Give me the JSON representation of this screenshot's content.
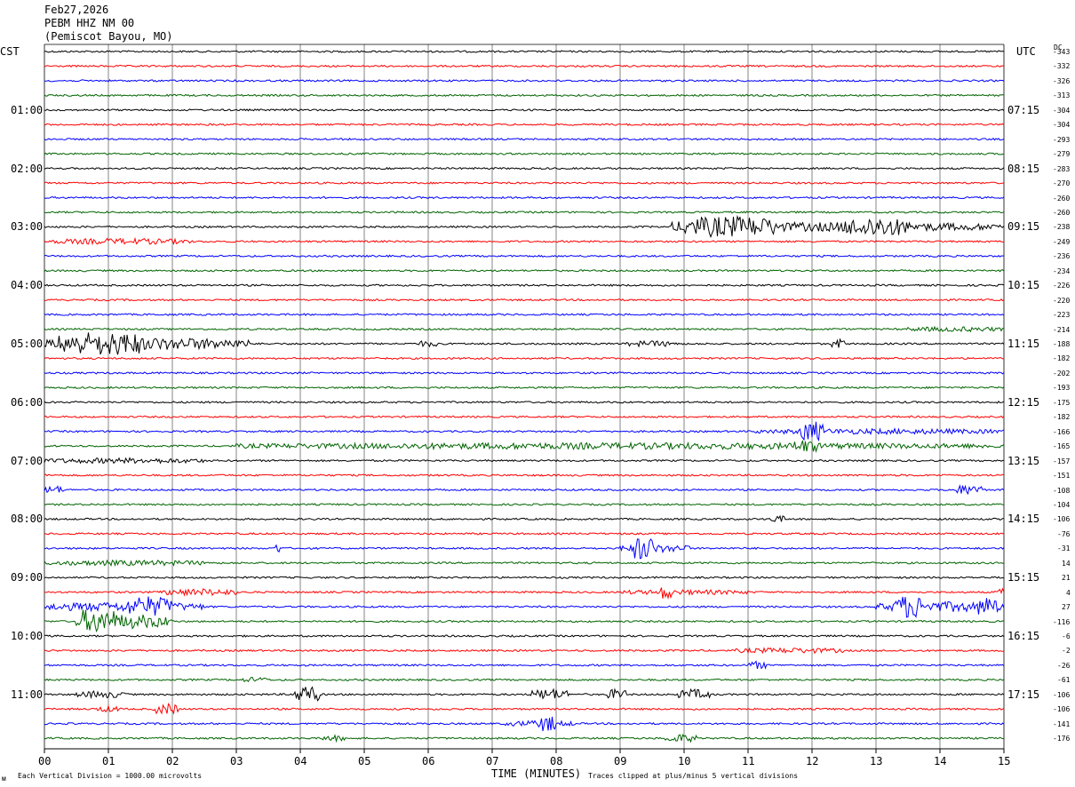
{
  "header": {
    "date": "Feb27,2026",
    "station": "PEBM HHZ NM 00",
    "location": "(Pemiscot Bayou, MO)"
  },
  "left_tz": "CST",
  "right_tz": "UTC",
  "dc_label": "DC",
  "footer": {
    "scale": "Each Vertical Division = 1000.00 microvolts",
    "clip": "Traces clipped at plus/minus 5 vertical divisions",
    "corner_mark": "ᴍ"
  },
  "colors": {
    "black": "#000000",
    "red": "#ff0000",
    "blue": "#0000ff",
    "green": "#006400",
    "grid": "#000000"
  },
  "chart_data": {
    "type": "helicorder",
    "xlabel": "TIME (MINUTES)",
    "x_ticks": [
      "00",
      "01",
      "02",
      "03",
      "04",
      "05",
      "06",
      "07",
      "08",
      "09",
      "10",
      "11",
      "12",
      "13",
      "14",
      "15"
    ],
    "xlim": [
      0,
      15
    ],
    "row_count": 48,
    "row_colors": [
      "black",
      "red",
      "blue",
      "green"
    ],
    "left_hour_labels": [
      "01:00",
      "02:00",
      "03:00",
      "04:00",
      "05:00",
      "06:00",
      "07:00",
      "08:00",
      "09:00",
      "10:00",
      "11:00"
    ],
    "right_hour_labels": [
      "07:15",
      "08:15",
      "09:15",
      "10:15",
      "11:15",
      "12:15",
      "13:15",
      "14:15",
      "15:15",
      "16:15",
      "17:15"
    ],
    "dc_offsets": [
      -343,
      -332,
      -326,
      -313,
      -304,
      -304,
      -293,
      -279,
      -283,
      -270,
      -260,
      -260,
      -238,
      -249,
      -236,
      -234,
      -226,
      -220,
      -223,
      -214,
      -188,
      -182,
      -202,
      -193,
      -175,
      -182,
      -166,
      -165,
      -157,
      -151,
      -108,
      -104,
      -106,
      -76,
      -31,
      14,
      21,
      4,
      27,
      -116,
      -6,
      -2,
      -26,
      -61,
      -106,
      -106,
      -141,
      -176
    ],
    "events": [
      {
        "row": 12,
        "start": 10.0,
        "end": 15.0,
        "amp": 0.7
      },
      {
        "row": 12,
        "start": 9.8,
        "end": 11.5,
        "amp": 1.3
      },
      {
        "row": 12,
        "start": 12.5,
        "end": 13.5,
        "amp": 1.0
      },
      {
        "row": 13,
        "start": 0.1,
        "end": 2.3,
        "amp": 0.4
      },
      {
        "row": 19,
        "start": 13.5,
        "end": 15.0,
        "amp": 0.3
      },
      {
        "row": 20,
        "start": 0.0,
        "end": 3.2,
        "amp": 1.0
      },
      {
        "row": 20,
        "start": 0.2,
        "end": 1.5,
        "amp": 1.4
      },
      {
        "row": 20,
        "start": 5.8,
        "end": 6.2,
        "amp": 0.4
      },
      {
        "row": 20,
        "start": 9.1,
        "end": 9.9,
        "amp": 0.4
      },
      {
        "row": 20,
        "start": 12.3,
        "end": 12.5,
        "amp": 0.8
      },
      {
        "row": 26,
        "start": 11.1,
        "end": 15.0,
        "amp": 0.35
      },
      {
        "row": 26,
        "start": 11.8,
        "end": 12.2,
        "amp": 1.5
      },
      {
        "row": 27,
        "start": 3.0,
        "end": 15.0,
        "amp": 0.45
      },
      {
        "row": 27,
        "start": 11.7,
        "end": 12.1,
        "amp": 0.7
      },
      {
        "row": 28,
        "start": 0.0,
        "end": 2.5,
        "amp": 0.35
      },
      {
        "row": 30,
        "start": 0.0,
        "end": 0.3,
        "amp": 0.6
      },
      {
        "row": 30,
        "start": 14.2,
        "end": 14.7,
        "amp": 0.8
      },
      {
        "row": 32,
        "start": 11.3,
        "end": 11.6,
        "amp": 0.5
      },
      {
        "row": 34,
        "start": 9.0,
        "end": 10.1,
        "amp": 0.6
      },
      {
        "row": 34,
        "start": 9.2,
        "end": 9.5,
        "amp": 2.0
      },
      {
        "row": 34,
        "start": 3.6,
        "end": 3.7,
        "amp": 0.8
      },
      {
        "row": 35,
        "start": 0.0,
        "end": 2.6,
        "amp": 0.35
      },
      {
        "row": 37,
        "start": 1.8,
        "end": 3.0,
        "amp": 0.5
      },
      {
        "row": 37,
        "start": 9.6,
        "end": 9.8,
        "amp": 0.9
      },
      {
        "row": 37,
        "start": 9.0,
        "end": 11.0,
        "amp": 0.3
      },
      {
        "row": 37,
        "start": 14.9,
        "end": 15.0,
        "amp": 0.6
      },
      {
        "row": 38,
        "start": 0.0,
        "end": 2.5,
        "amp": 0.7
      },
      {
        "row": 38,
        "start": 1.3,
        "end": 2.0,
        "amp": 1.1
      },
      {
        "row": 38,
        "start": 13.0,
        "end": 15.0,
        "amp": 0.8
      },
      {
        "row": 38,
        "start": 13.3,
        "end": 13.7,
        "amp": 2.0
      },
      {
        "row": 38,
        "start": 14.6,
        "end": 14.9,
        "amp": 1.2
      },
      {
        "row": 39,
        "start": 0.5,
        "end": 2.0,
        "amp": 1.2
      },
      {
        "row": 39,
        "start": 0.6,
        "end": 1.1,
        "amp": 2.2
      },
      {
        "row": 41,
        "start": 10.8,
        "end": 12.5,
        "amp": 0.35
      },
      {
        "row": 42,
        "start": 11.0,
        "end": 11.3,
        "amp": 0.6
      },
      {
        "row": 43,
        "start": 3.1,
        "end": 3.5,
        "amp": 0.35
      },
      {
        "row": 44,
        "start": 0.5,
        "end": 1.3,
        "amp": 0.5
      },
      {
        "row": 44,
        "start": 3.9,
        "end": 4.3,
        "amp": 1.6
      },
      {
        "row": 44,
        "start": 7.6,
        "end": 8.2,
        "amp": 0.9
      },
      {
        "row": 44,
        "start": 8.8,
        "end": 9.1,
        "amp": 0.9
      },
      {
        "row": 44,
        "start": 9.9,
        "end": 10.4,
        "amp": 0.8
      },
      {
        "row": 45,
        "start": 1.7,
        "end": 2.1,
        "amp": 0.9
      },
      {
        "row": 45,
        "start": 0.8,
        "end": 1.2,
        "amp": 0.4
      },
      {
        "row": 46,
        "start": 7.2,
        "end": 8.3,
        "amp": 0.4
      },
      {
        "row": 46,
        "start": 7.7,
        "end": 8.0,
        "amp": 1.0
      },
      {
        "row": 47,
        "start": 4.3,
        "end": 4.7,
        "amp": 0.4
      },
      {
        "row": 47,
        "start": 9.7,
        "end": 10.2,
        "amp": 0.6
      }
    ]
  }
}
